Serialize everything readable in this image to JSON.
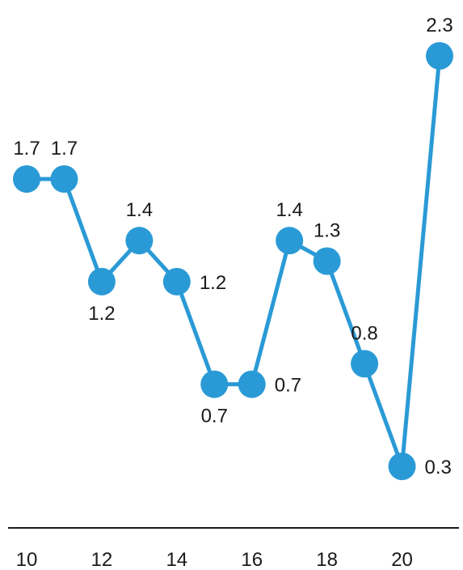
{
  "chart_data": {
    "type": "line",
    "x": [
      10,
      11,
      12,
      13,
      14,
      15,
      16,
      17,
      18,
      19,
      20,
      21
    ],
    "series": [
      {
        "values": [
          1.7,
          1.7,
          1.2,
          1.4,
          1.2,
          0.7,
          0.7,
          1.4,
          1.3,
          0.8,
          0.3,
          2.3
        ],
        "labels": [
          "1.7",
          "1.7",
          "1.2",
          "1.4",
          "1.2",
          "0.7",
          "0.7",
          "1.4",
          "1.3",
          "0.8",
          "0.3",
          "2.3"
        ],
        "label_side": [
          "above",
          "above",
          "below",
          "above",
          "right",
          "below",
          "right",
          "above",
          "above",
          "above",
          "right",
          "above"
        ],
        "color": "#2a9ad6"
      }
    ],
    "x_ticks": [
      10,
      12,
      14,
      16,
      18,
      20
    ],
    "x_tick_labels": [
      "10",
      "12",
      "14",
      "16",
      "18",
      "20"
    ],
    "xlim": [
      10,
      21
    ],
    "ylim": [
      0.3,
      2.3
    ],
    "title": "",
    "xlabel": "",
    "ylabel": "",
    "grid": false,
    "y_axis_visible": false,
    "legend": "none"
  }
}
